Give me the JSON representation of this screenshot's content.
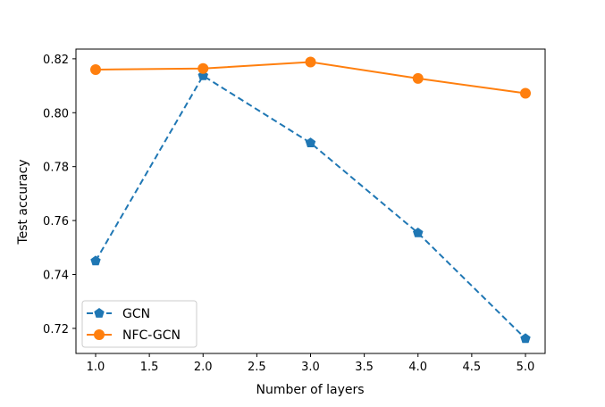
{
  "chart_data": {
    "type": "line",
    "title": "",
    "xlabel": "Number of layers",
    "ylabel": "Test accuracy",
    "xlim": [
      0.817,
      5.183
    ],
    "ylim": [
      0.7107,
      0.8236
    ],
    "xticks": [
      1.0,
      1.5,
      2.0,
      2.5,
      3.0,
      3.5,
      4.0,
      4.5,
      5.0
    ],
    "xtick_labels": [
      "1.0",
      "1.5",
      "2.0",
      "2.5",
      "3.0",
      "3.5",
      "4.0",
      "4.5",
      "5.0"
    ],
    "yticks": [
      0.72,
      0.74,
      0.76,
      0.78,
      0.8,
      0.82
    ],
    "ytick_labels": [
      "0.72",
      "0.74",
      "0.76",
      "0.78",
      "0.80",
      "0.82"
    ],
    "grid": false,
    "legend_position": "lower-left",
    "x": [
      1,
      2,
      3,
      4,
      5
    ],
    "series": [
      {
        "name": "GCN",
        "values": [
          0.745,
          0.8137,
          0.7888,
          0.7554,
          0.7162
        ],
        "color": "#1f77b4",
        "linestyle": "dashed",
        "marker": "pentagon"
      },
      {
        "name": "NFC-GCN",
        "values": [
          0.816,
          0.8164,
          0.8188,
          0.8127,
          0.8072
        ],
        "color": "#ff7f0e",
        "linestyle": "solid",
        "marker": "circle"
      }
    ]
  }
}
